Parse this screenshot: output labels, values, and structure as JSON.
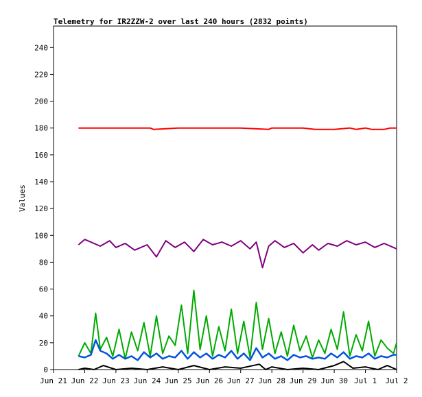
{
  "chart_data": {
    "type": "line",
    "title": "Telemetry for IR2ZZW-2 over last 240 hours (2832 points)",
    "xlabel": "",
    "ylabel": "Values",
    "ylim": [
      0,
      256
    ],
    "yticks": [
      0,
      20,
      40,
      60,
      80,
      100,
      120,
      140,
      160,
      180,
      200,
      220,
      240
    ],
    "xticks": [
      "Jun 21",
      "Jun 22",
      "Jun 23",
      "Jun 24",
      "Jun 25",
      "Jun 26",
      "Jun 27",
      "Jun 28",
      "Jun 29",
      "Jun 30",
      "Jul 1",
      "Jul 2"
    ],
    "xlim_days": [
      0,
      11
    ],
    "x_unit": "days from Jun 21 00:00",
    "grid": false,
    "legend": "none",
    "series": [
      {
        "color": "#ff0000",
        "x": [
          0.8,
          2.0,
          3.1,
          3.2,
          4.0,
          5.0,
          6.0,
          6.9,
          7.0,
          7.4,
          8.0,
          8.4,
          9.0,
          9.5,
          9.7,
          10.0,
          10.2,
          10.3,
          10.6,
          10.8,
          11.0
        ],
        "values": [
          180,
          180,
          180,
          179,
          180,
          180,
          180,
          179,
          180,
          180,
          180,
          179,
          179,
          180,
          179,
          180,
          179,
          179,
          179,
          180,
          180
        ]
      },
      {
        "color": "#7f007f",
        "x": [
          0.8,
          1.0,
          1.2,
          1.5,
          1.8,
          2.0,
          2.3,
          2.6,
          3.0,
          3.3,
          3.6,
          3.9,
          4.2,
          4.5,
          4.8,
          5.1,
          5.4,
          5.7,
          6.0,
          6.3,
          6.5,
          6.7,
          6.9,
          7.1,
          7.4,
          7.7,
          8.0,
          8.3,
          8.5,
          8.8,
          9.1,
          9.4,
          9.7,
          10.0,
          10.3,
          10.6,
          11.0
        ],
        "values": [
          93,
          97,
          95,
          92,
          96,
          91,
          94,
          89,
          93,
          84,
          96,
          91,
          95,
          88,
          97,
          93,
          95,
          92,
          96,
          90,
          95,
          76,
          92,
          96,
          91,
          94,
          87,
          93,
          89,
          94,
          92,
          96,
          93,
          95,
          91,
          94,
          90
        ]
      },
      {
        "color": "#00aa00",
        "x": [
          0.8,
          1.0,
          1.2,
          1.35,
          1.5,
          1.7,
          1.9,
          2.1,
          2.3,
          2.5,
          2.7,
          2.9,
          3.1,
          3.3,
          3.5,
          3.7,
          3.9,
          4.1,
          4.3,
          4.5,
          4.7,
          4.9,
          5.1,
          5.3,
          5.5,
          5.7,
          5.9,
          6.1,
          6.3,
          6.5,
          6.7,
          6.9,
          7.1,
          7.3,
          7.5,
          7.7,
          7.9,
          8.1,
          8.3,
          8.5,
          8.7,
          8.9,
          9.1,
          9.3,
          9.5,
          9.7,
          9.9,
          10.1,
          10.3,
          10.5,
          10.7,
          10.9,
          11.0
        ],
        "values": [
          10,
          20,
          12,
          42,
          15,
          24,
          10,
          30,
          8,
          28,
          14,
          35,
          10,
          40,
          12,
          25,
          18,
          48,
          12,
          59,
          15,
          40,
          10,
          32,
          14,
          45,
          12,
          36,
          9,
          50,
          15,
          38,
          12,
          28,
          10,
          33,
          14,
          25,
          9,
          22,
          12,
          30,
          15,
          43,
          10,
          26,
          14,
          36,
          10,
          22,
          16,
          12,
          20
        ]
      },
      {
        "color": "#0055dd",
        "x": [
          0.8,
          1.0,
          1.2,
          1.35,
          1.5,
          1.7,
          1.9,
          2.1,
          2.3,
          2.5,
          2.7,
          2.9,
          3.1,
          3.3,
          3.5,
          3.7,
          3.9,
          4.1,
          4.3,
          4.5,
          4.7,
          4.9,
          5.1,
          5.3,
          5.5,
          5.7,
          5.9,
          6.1,
          6.3,
          6.5,
          6.7,
          6.9,
          7.1,
          7.3,
          7.5,
          7.7,
          7.9,
          8.1,
          8.3,
          8.5,
          8.7,
          8.9,
          9.1,
          9.3,
          9.5,
          9.7,
          9.9,
          10.1,
          10.3,
          10.5,
          10.7,
          10.9,
          11.0
        ],
        "values": [
          10,
          9,
          11,
          22,
          14,
          12,
          8,
          11,
          8,
          10,
          7,
          13,
          9,
          12,
          8,
          10,
          9,
          14,
          8,
          13,
          9,
          12,
          8,
          11,
          9,
          14,
          8,
          12,
          7,
          16,
          9,
          12,
          8,
          10,
          7,
          11,
          9,
          10,
          8,
          9,
          8,
          12,
          9,
          13,
          8,
          10,
          9,
          12,
          8,
          10,
          9,
          11,
          11
        ]
      },
      {
        "color": "#000000",
        "x": [
          0.8,
          1.0,
          1.3,
          1.6,
          2.0,
          2.5,
          3.0,
          3.5,
          4.0,
          4.5,
          5.0,
          5.5,
          6.0,
          6.6,
          6.8,
          7.0,
          7.5,
          8.0,
          8.5,
          9.0,
          9.3,
          9.6,
          10.0,
          10.4,
          10.7,
          11.0
        ],
        "values": [
          0,
          1,
          0,
          3,
          0,
          1,
          0,
          2,
          0,
          3,
          0,
          2,
          1,
          4,
          0,
          2,
          0,
          1,
          0,
          3,
          6,
          1,
          2,
          0,
          3,
          0
        ]
      }
    ]
  }
}
